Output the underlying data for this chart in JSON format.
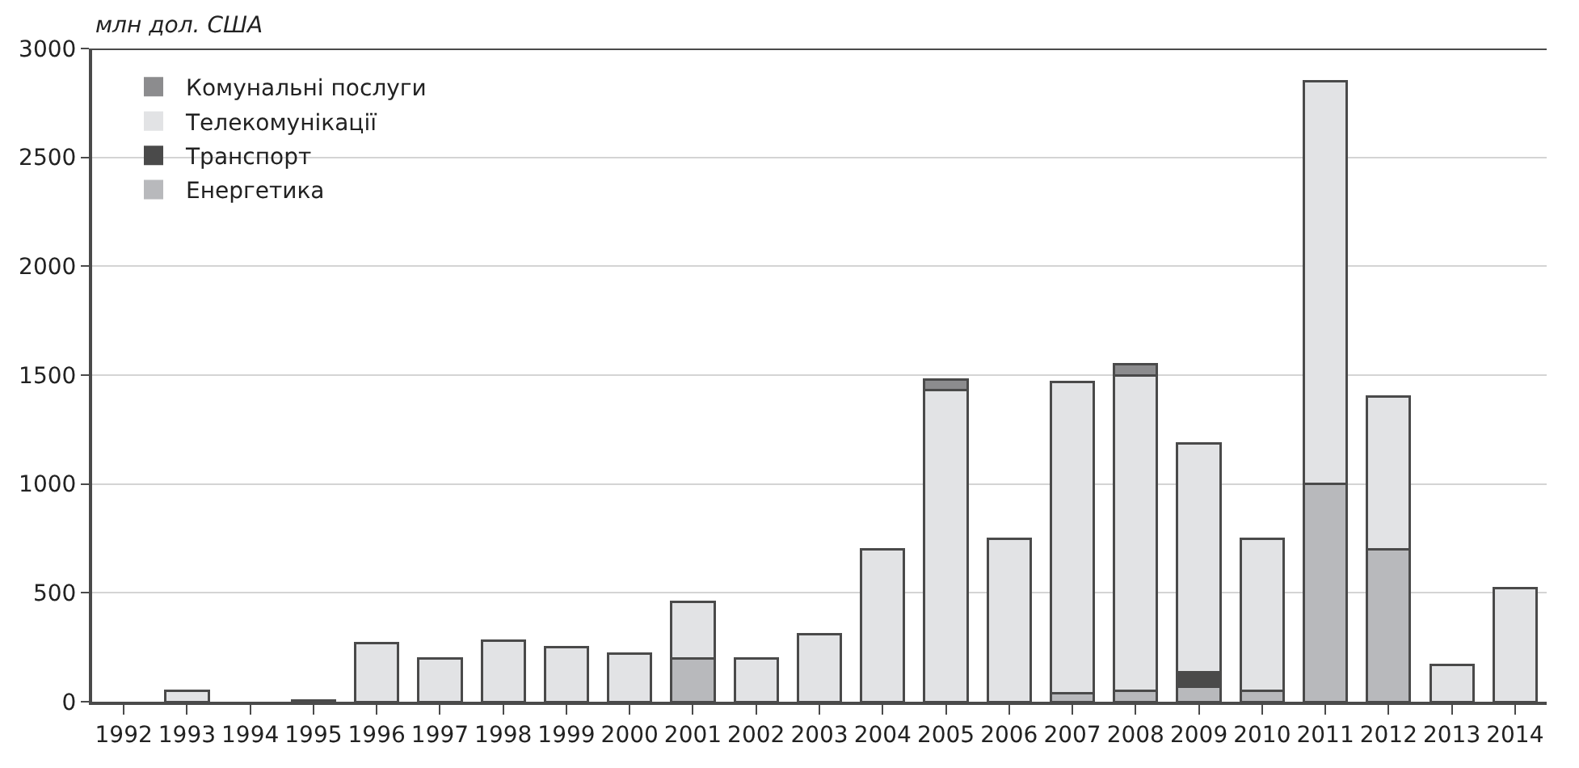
{
  "chart_data": {
    "type": "bar",
    "stacked": true,
    "ylabel": "млн дол. США",
    "categories": [
      "1992",
      "1993",
      "1994",
      "1995",
      "1996",
      "1997",
      "1998",
      "1999",
      "2000",
      "2001",
      "2002",
      "2003",
      "2004",
      "2005",
      "2006",
      "2007",
      "2008",
      "2009",
      "2010",
      "2011",
      "2012",
      "2013",
      "2014"
    ],
    "series": [
      {
        "name": "Енергетика",
        "color": "#b8b9bc",
        "values": [
          0,
          0,
          0,
          0,
          0,
          0,
          0,
          0,
          0,
          200,
          0,
          0,
          0,
          0,
          0,
          40,
          50,
          70,
          50,
          1000,
          700,
          0,
          0
        ]
      },
      {
        "name": "Транспорт",
        "color": "#4a4a4a",
        "values": [
          0,
          0,
          0,
          0,
          0,
          0,
          0,
          0,
          0,
          0,
          null,
          0,
          0,
          0,
          0,
          0,
          0,
          65,
          0,
          0,
          0,
          0,
          0
        ]
      },
      {
        "name": "Телекомунікації",
        "color": "#e2e3e5",
        "values": [
          0,
          50,
          0,
          5,
          270,
          200,
          280,
          250,
          220,
          260,
          200,
          310,
          700,
          1430,
          750,
          1430,
          1450,
          1050,
          700,
          1850,
          700,
          170,
          520
        ]
      },
      {
        "name": "Комунальні послуги",
        "color": "#8c8c8e",
        "values": [
          0,
          0,
          0,
          0,
          0,
          0,
          0,
          0,
          0,
          0,
          0,
          0,
          0,
          50,
          0,
          0,
          50,
          0,
          0,
          0,
          0,
          0,
          0
        ]
      }
    ],
    "ylim": [
      0,
      3000
    ],
    "yticks": [
      0,
      500,
      1000,
      1500,
      2000,
      2500,
      3000
    ],
    "grid": "y",
    "legend": "top left"
  }
}
